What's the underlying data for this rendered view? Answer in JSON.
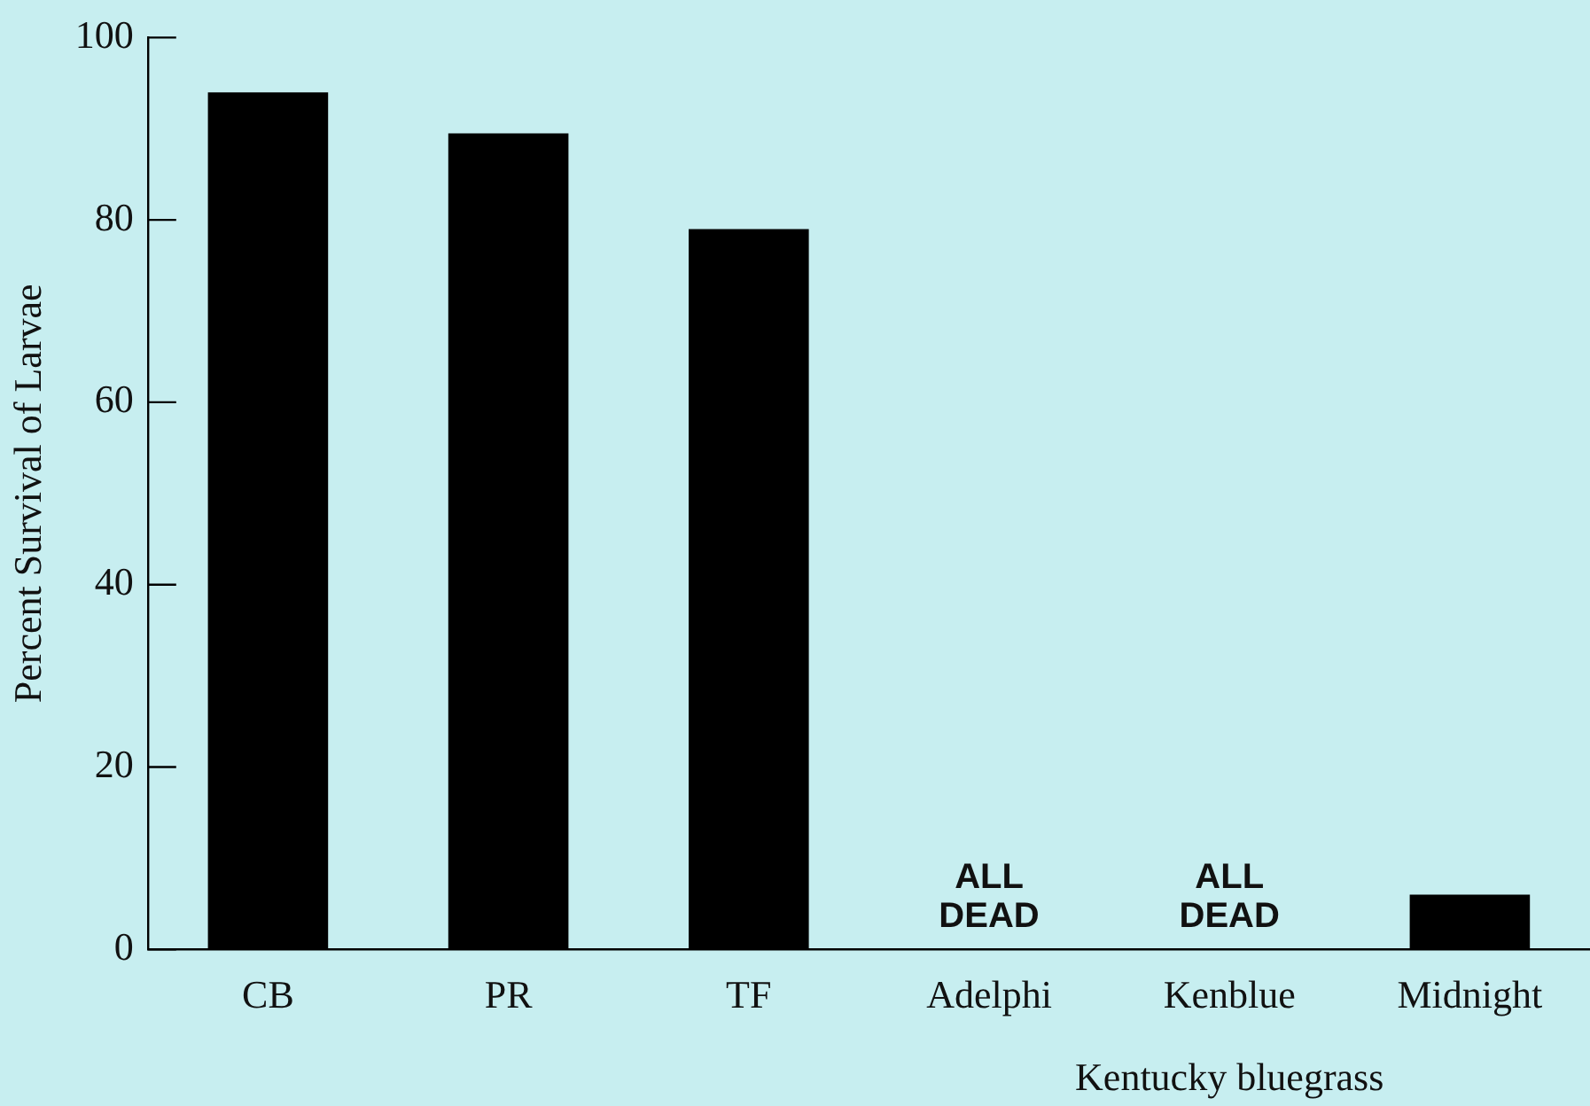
{
  "chart_data": {
    "type": "bar",
    "xlabel": "Kentucky bluegrass",
    "ylabel": "Percent Survival of Larvae",
    "categories": [
      "CB",
      "PR",
      "TF",
      "Adelphi",
      "Kenblue",
      "Midnight"
    ],
    "values": [
      94,
      89.5,
      79,
      0,
      0,
      6
    ],
    "color": "#000000",
    "ylim": [
      0,
      100
    ],
    "yticks": [
      0,
      20,
      40,
      60,
      80,
      100
    ],
    "grid": false,
    "legend": false,
    "annotations": [
      {
        "text": "ALL\nDEAD",
        "x": "Adelphi",
        "y": 0
      },
      {
        "text": "ALL\nDEAD",
        "x": "Kenblue",
        "y": 0
      }
    ]
  }
}
